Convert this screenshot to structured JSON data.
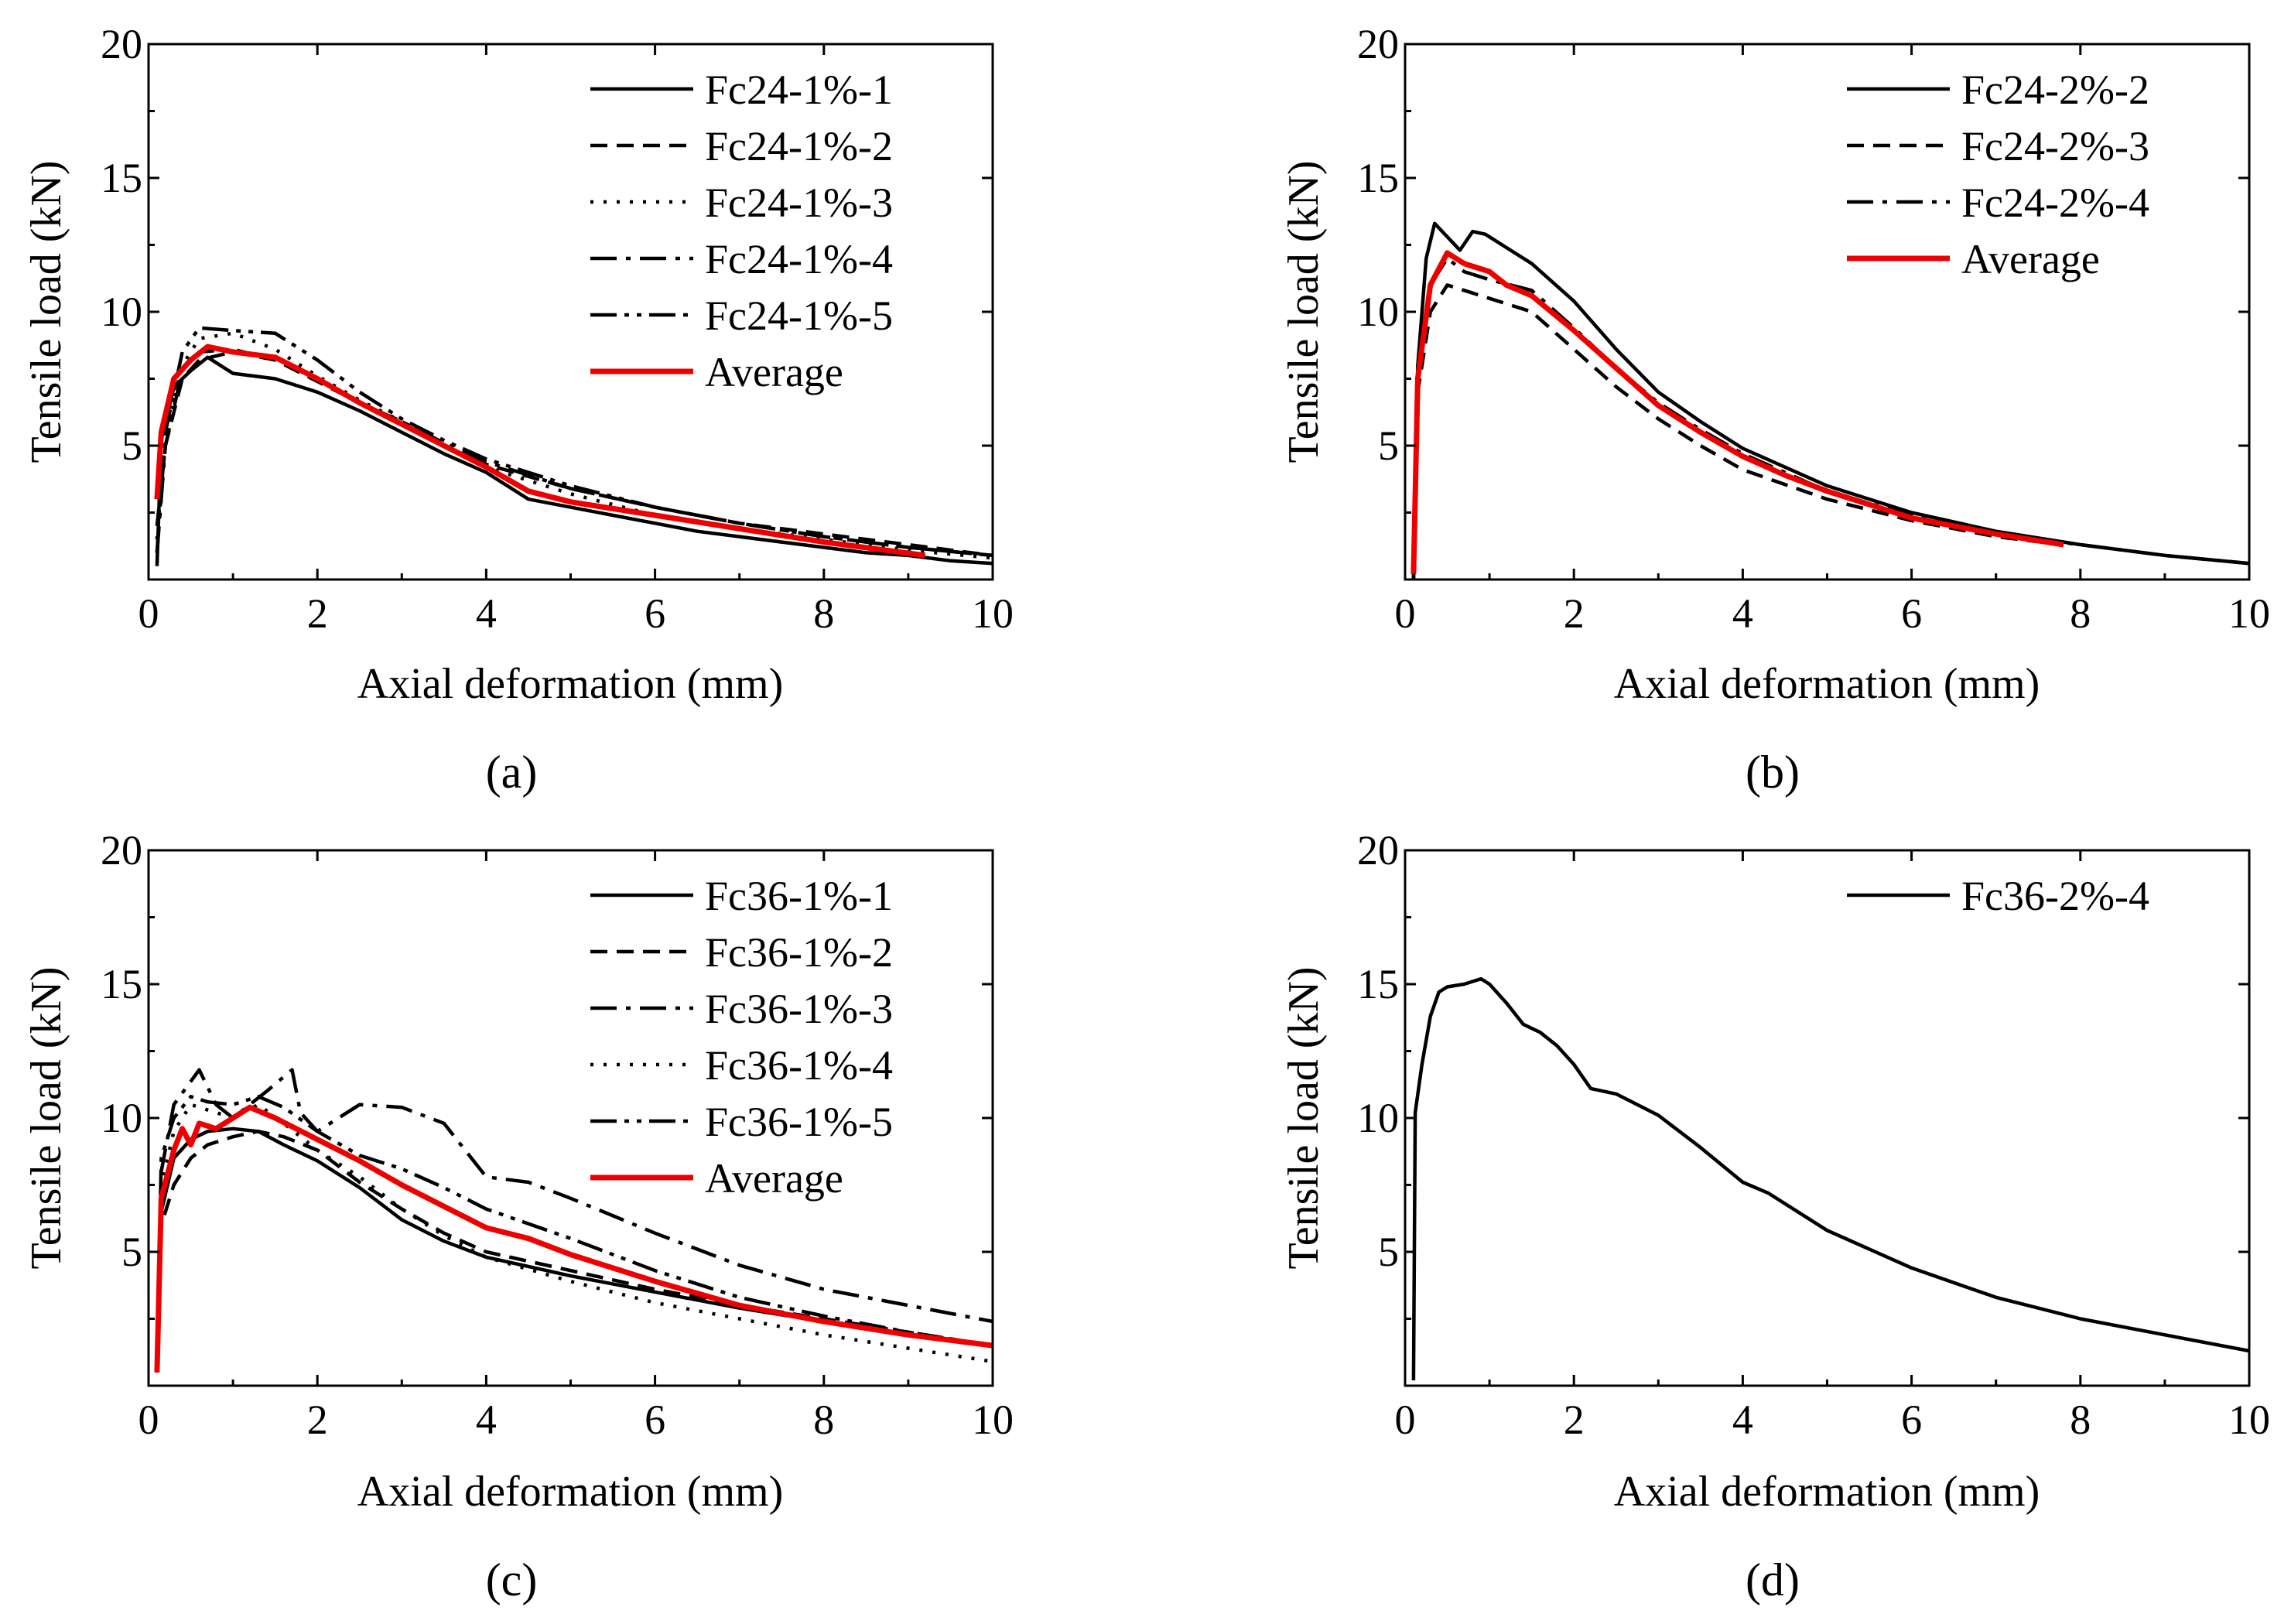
{
  "chart_data": [
    {
      "type": "line",
      "panel_label": "(a)",
      "xlabel": "Axial deformation (mm)",
      "ylabel": "Tensile load (kN)",
      "xlim": [
        0,
        10
      ],
      "ylim": [
        0,
        20
      ],
      "xticks": [
        0,
        2,
        4,
        6,
        8,
        10
      ],
      "yticks": [
        5,
        10,
        15,
        20
      ],
      "grid": false,
      "legend_position": "top-right",
      "series": [
        {
          "name": "Fc24-1%-1",
          "color": "#000000",
          "style": "solid",
          "x": [
            0.1,
            0.15,
            0.3,
            0.5,
            0.7,
            1.0,
            1.5,
            2.0,
            2.5,
            3.0,
            3.5,
            4.0,
            4.5,
            5.0,
            5.5,
            6.0,
            6.5,
            7.0,
            7.5,
            8.0,
            8.5,
            9.0,
            9.5,
            10.0
          ],
          "y": [
            0.5,
            5.2,
            7.2,
            7.8,
            8.3,
            7.7,
            7.5,
            7.0,
            6.3,
            5.5,
            4.7,
            4.0,
            3.0,
            2.7,
            2.4,
            2.1,
            1.8,
            1.6,
            1.4,
            1.2,
            1.0,
            0.9,
            0.7,
            0.6
          ]
        },
        {
          "name": "Fc24-1%-2",
          "color": "#000000",
          "style": "dashed",
          "x": [
            0.1,
            0.2,
            0.4,
            0.6,
            1.0,
            1.5,
            2.0,
            2.5,
            3.0,
            3.5,
            4.0,
            5.0,
            6.0,
            7.0,
            8.0,
            9.0,
            10.0
          ],
          "y": [
            2.0,
            5.0,
            7.5,
            8.2,
            8.5,
            8.2,
            7.4,
            6.6,
            5.8,
            5.0,
            4.3,
            3.4,
            2.7,
            2.1,
            1.7,
            1.3,
            0.9
          ]
        },
        {
          "name": "Fc24-1%-3",
          "color": "#000000",
          "style": "dotted",
          "x": [
            0.1,
            0.2,
            0.4,
            0.6,
            1.0,
            1.5,
            2.0,
            2.5,
            3.0,
            3.5,
            4.0,
            5.0,
            6.0,
            7.0,
            8.0,
            9.0,
            10.0
          ],
          "y": [
            1.5,
            5.5,
            8.0,
            9.0,
            9.2,
            8.6,
            7.6,
            6.7,
            5.9,
            5.0,
            4.2,
            3.2,
            2.4,
            1.9,
            1.5,
            1.1,
            0.8
          ]
        },
        {
          "name": "Fc24-1%-4",
          "color": "#000000",
          "style": "dashdot",
          "x": [
            0.1,
            0.2,
            0.4,
            0.6,
            1.0,
            1.5,
            2.0,
            2.5,
            3.0,
            3.5,
            4.0,
            5.0,
            6.0,
            7.0,
            8.0,
            9.0,
            10.0
          ],
          "y": [
            1.0,
            5.0,
            7.8,
            8.5,
            8.6,
            8.2,
            7.5,
            6.6,
            5.9,
            5.1,
            4.4,
            3.4,
            2.7,
            2.1,
            1.6,
            1.2,
            0.9
          ]
        },
        {
          "name": "Fc24-1%-5",
          "color": "#000000",
          "style": "dashdotdot",
          "x": [
            0.1,
            0.2,
            0.4,
            0.6,
            1.0,
            1.5,
            2.0,
            2.5,
            3.0,
            3.5,
            4.0,
            5.0,
            6.0,
            7.0,
            8.0,
            9.0,
            10.0
          ],
          "y": [
            1.0,
            5.5,
            8.5,
            9.4,
            9.3,
            9.2,
            8.2,
            7.0,
            6.0,
            5.2,
            4.5,
            3.5,
            2.7,
            2.1,
            1.6,
            1.2,
            0.9
          ]
        },
        {
          "name": "Average",
          "color": "#ee0000",
          "style": "solid",
          "x": [
            0.1,
            0.15,
            0.3,
            0.5,
            0.7,
            1.0,
            1.5,
            2.0,
            2.5,
            3.0,
            3.5,
            4.0,
            4.5,
            5.0,
            6.0,
            7.0,
            8.0,
            9.2
          ],
          "y": [
            3.0,
            5.5,
            7.5,
            8.2,
            8.7,
            8.5,
            8.3,
            7.5,
            6.6,
            5.8,
            5.0,
            4.2,
            3.3,
            2.9,
            2.4,
            1.9,
            1.4,
            0.9
          ]
        }
      ]
    },
    {
      "type": "line",
      "panel_label": "(b)",
      "xlabel": "Axial deformation (mm)",
      "ylabel": "Tensile load (kN)",
      "xlim": [
        0,
        10
      ],
      "ylim": [
        0,
        20
      ],
      "xticks": [
        0,
        2,
        4,
        6,
        8,
        10
      ],
      "yticks": [
        5,
        10,
        15,
        20
      ],
      "grid": false,
      "legend_position": "top-right",
      "series": [
        {
          "name": "Fc24-2%-2",
          "color": "#000000",
          "style": "solid",
          "x": [
            0.1,
            0.15,
            0.25,
            0.35,
            0.5,
            0.65,
            0.8,
            0.95,
            1.2,
            1.5,
            2.0,
            2.5,
            3.0,
            3.5,
            4.0,
            5.0,
            6.0,
            7.0,
            8.0,
            9.0,
            10.0
          ],
          "y": [
            0.0,
            8.0,
            12.0,
            13.3,
            12.8,
            12.3,
            13.0,
            12.9,
            12.4,
            11.8,
            10.4,
            8.6,
            7.0,
            5.9,
            4.9,
            3.5,
            2.5,
            1.8,
            1.3,
            0.9,
            0.6
          ]
        },
        {
          "name": "Fc24-2%-3",
          "color": "#000000",
          "style": "dashed",
          "x": [
            0.1,
            0.15,
            0.3,
            0.5,
            0.7,
            1.0,
            1.5,
            2.0,
            2.5,
            3.0,
            3.5,
            4.0,
            5.0,
            6.0,
            7.0,
            7.8
          ],
          "y": [
            0.0,
            7.0,
            10.0,
            11.0,
            10.8,
            10.5,
            10.0,
            8.6,
            7.2,
            6.0,
            5.0,
            4.1,
            3.0,
            2.2,
            1.6,
            1.3
          ]
        },
        {
          "name": "Fc24-2%-4",
          "color": "#000000",
          "style": "dashdot",
          "x": [
            0.1,
            0.15,
            0.3,
            0.5,
            0.7,
            1.0,
            1.5,
            2.0,
            2.5,
            3.0,
            3.5,
            4.0,
            5.0,
            6.0,
            7.0,
            8.0,
            9.0,
            10.0
          ],
          "y": [
            0.0,
            8.0,
            11.0,
            12.0,
            11.5,
            11.2,
            10.8,
            9.4,
            7.9,
            6.6,
            5.6,
            4.7,
            3.3,
            2.4,
            1.7,
            1.3,
            0.9,
            0.6
          ]
        },
        {
          "name": "Average",
          "color": "#ee0000",
          "style": "solid",
          "x": [
            0.1,
            0.15,
            0.3,
            0.5,
            0.7,
            1.0,
            1.2,
            1.5,
            2.0,
            2.5,
            3.0,
            3.5,
            4.0,
            4.5,
            5.0,
            6.0,
            7.0,
            7.8
          ],
          "y": [
            0.2,
            7.5,
            11.0,
            12.2,
            11.8,
            11.5,
            11.0,
            10.6,
            9.3,
            7.9,
            6.5,
            5.5,
            4.6,
            3.9,
            3.3,
            2.3,
            1.7,
            1.3
          ]
        }
      ]
    },
    {
      "type": "line",
      "panel_label": "(c)",
      "xlabel": "Axial deformation (mm)",
      "ylabel": "Tensile load (kN)",
      "xlim": [
        0,
        10
      ],
      "ylim": [
        0,
        20
      ],
      "xticks": [
        0,
        2,
        4,
        6,
        8,
        10
      ],
      "yticks": [
        5,
        10,
        15,
        20
      ],
      "grid": false,
      "legend_position": "top-right",
      "series": [
        {
          "name": "Fc36-1%-1",
          "color": "#000000",
          "style": "solid",
          "x": [
            0.1,
            0.15,
            0.3,
            0.5,
            0.7,
            1.0,
            1.3,
            1.6,
            2.0,
            2.5,
            3.0,
            3.5,
            4.0,
            5.0,
            6.0,
            7.0,
            8.0,
            9.0,
            10.0
          ],
          "y": [
            0.5,
            6.5,
            8.5,
            9.2,
            9.5,
            9.6,
            9.5,
            9.0,
            8.4,
            7.4,
            6.2,
            5.4,
            4.8,
            4.1,
            3.5,
            2.9,
            2.4,
            1.9,
            1.5
          ]
        },
        {
          "name": "Fc36-1%-2",
          "color": "#000000",
          "style": "dashed",
          "x": [
            0.1,
            0.15,
            0.3,
            0.5,
            0.7,
            1.0,
            1.3,
            1.6,
            2.0,
            2.5,
            3.0,
            3.5,
            4.0,
            5.0,
            6.0,
            7.0,
            8.0,
            9.0,
            10.0
          ],
          "y": [
            0.5,
            6.0,
            7.5,
            8.5,
            9.0,
            9.3,
            9.5,
            9.3,
            8.8,
            7.6,
            6.6,
            5.7,
            5.0,
            4.3,
            3.6,
            3.0,
            2.5,
            2.0,
            1.5
          ]
        },
        {
          "name": "Fc36-1%-3",
          "color": "#000000",
          "style": "dashdot",
          "x": [
            0.1,
            0.15,
            0.3,
            0.6,
            0.8,
            1.0,
            1.4,
            1.7,
            1.8,
            2.0,
            2.5,
            3.0,
            3.5,
            4.0,
            4.5,
            5.0,
            6.0,
            7.0,
            8.0,
            9.0,
            10.0
          ],
          "y": [
            0.5,
            8.0,
            10.5,
            11.8,
            10.5,
            10.0,
            11.0,
            11.8,
            10.2,
            9.5,
            10.5,
            10.4,
            9.8,
            7.8,
            7.6,
            7.0,
            5.7,
            4.5,
            3.6,
            3.0,
            2.4
          ]
        },
        {
          "name": "Fc36-1%-4",
          "color": "#000000",
          "style": "dotted",
          "x": [
            0.1,
            0.15,
            0.3,
            0.5,
            0.7,
            1.0,
            1.3,
            1.6,
            2.0,
            2.5,
            3.0,
            3.5,
            4.0,
            5.0,
            6.0,
            7.0,
            8.0,
            9.0,
            10.0
          ],
          "y": [
            0.5,
            7.5,
            9.5,
            10.5,
            10.3,
            10.0,
            10.5,
            9.8,
            8.8,
            7.8,
            6.6,
            5.6,
            4.8,
            3.9,
            3.1,
            2.5,
            1.9,
            1.4,
            0.9
          ]
        },
        {
          "name": "Fc36-1%-5",
          "color": "#000000",
          "style": "dashdotdot",
          "x": [
            0.1,
            0.15,
            0.3,
            0.5,
            0.7,
            1.0,
            1.3,
            1.6,
            2.0,
            2.5,
            3.0,
            3.5,
            4.0,
            5.0,
            6.0,
            7.0,
            8.0,
            9.0,
            10.0
          ],
          "y": [
            0.5,
            8.5,
            10.0,
            10.8,
            10.6,
            10.5,
            10.8,
            10.4,
            9.5,
            8.6,
            8.1,
            7.4,
            6.6,
            5.5,
            4.3,
            3.3,
            2.6,
            2.0,
            1.5
          ]
        },
        {
          "name": "Average",
          "color": "#ee0000",
          "style": "solid",
          "x": [
            0.1,
            0.15,
            0.3,
            0.4,
            0.5,
            0.6,
            0.8,
            1.0,
            1.2,
            1.5,
            2.0,
            2.5,
            3.0,
            3.5,
            4.0,
            4.5,
            5.0,
            6.0,
            7.0,
            8.0,
            9.0,
            10.0
          ],
          "y": [
            0.5,
            7.0,
            8.8,
            9.6,
            9.0,
            9.8,
            9.6,
            10.0,
            10.4,
            10.0,
            9.2,
            8.4,
            7.5,
            6.7,
            5.9,
            5.5,
            4.9,
            3.9,
            3.0,
            2.4,
            1.9,
            1.5
          ]
        }
      ]
    },
    {
      "type": "line",
      "panel_label": "(d)",
      "xlabel": "Axial deformation (mm)",
      "ylabel": "Tensile load (kN)",
      "xlim": [
        0,
        10
      ],
      "ylim": [
        0,
        20
      ],
      "xticks": [
        0,
        2,
        4,
        6,
        8,
        10
      ],
      "yticks": [
        5,
        10,
        15,
        20
      ],
      "grid": false,
      "legend_position": "top-right",
      "series": [
        {
          "name": "Fc36-2%-4",
          "color": "#000000",
          "style": "solid",
          "x": [
            0.1,
            0.12,
            0.2,
            0.3,
            0.4,
            0.5,
            0.7,
            0.9,
            1.0,
            1.2,
            1.4,
            1.6,
            1.8,
            2.0,
            2.2,
            2.5,
            3.0,
            3.5,
            4.0,
            4.3,
            5.0,
            6.0,
            7.0,
            8.0,
            9.0,
            10.0
          ],
          "y": [
            0.2,
            10.2,
            12.0,
            13.8,
            14.7,
            14.9,
            15.0,
            15.2,
            15.0,
            14.3,
            13.5,
            13.2,
            12.7,
            12.0,
            11.1,
            10.9,
            10.1,
            8.9,
            7.6,
            7.2,
            5.8,
            4.4,
            3.3,
            2.5,
            1.9,
            1.3
          ]
        }
      ]
    }
  ]
}
